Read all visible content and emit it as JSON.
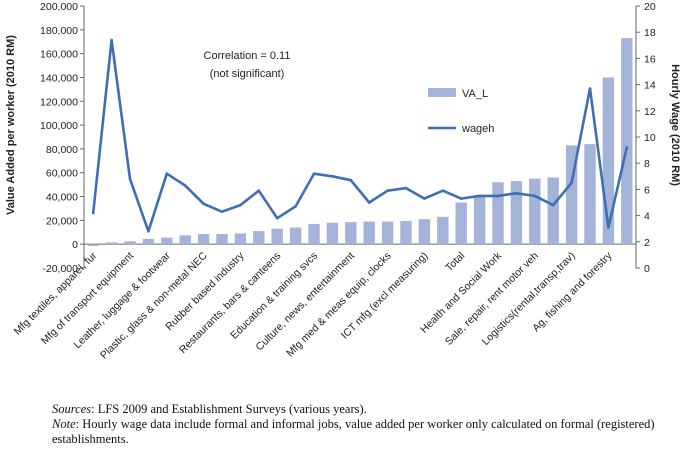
{
  "chart_data": {
    "type": "bar",
    "y_left_label": "Value Added per worker (2010 RM)",
    "y_right_label": "Hourly Wage (2010 RM)",
    "y_left_range": [
      -20000,
      200000
    ],
    "y_left_ticks": [
      "-20,000",
      "0",
      "20,000",
      "40,000",
      "60,000",
      "80,000",
      "100,000",
      "120,000",
      "140,000",
      "160,000",
      "180,000",
      "200,000"
    ],
    "y_right_range": [
      0,
      20
    ],
    "y_right_ticks": [
      "0",
      "2",
      "4",
      "6",
      "8",
      "10",
      "12",
      "14",
      "16",
      "18",
      "20"
    ],
    "categories": [
      "Mfg textiles, apparel, fur",
      "",
      "Mfg of transport equipment",
      "",
      "Leather, luggage & footwear",
      "",
      "Plastic, glass & non-metal NEC",
      "",
      "Rubber based industry",
      "",
      "Restaurants, bars & canteens",
      "",
      "Education & training svcs",
      "",
      "Culture, news, entertainment",
      "",
      "Mfg med & meas equip, clocks",
      "",
      "ICT mfg (excl measuring)",
      "",
      "Total",
      "",
      "Health and Social Work",
      "",
      "Sale, repair, rent motor veh",
      "",
      "Logistics(rental,transp,trav)",
      "",
      "Ag, fishing and forestry",
      ""
    ],
    "series": [
      {
        "name": "VA_L",
        "type": "bar",
        "axis": "left",
        "color": "#a4b3d8",
        "values": [
          -1500,
          1500,
          2500,
          4500,
          5500,
          7500,
          8500,
          8500,
          9000,
          11000,
          13000,
          14000,
          17000,
          18000,
          18500,
          19000,
          19000,
          19500,
          21000,
          23000,
          35000,
          40000,
          52000,
          53000,
          55000,
          56000,
          83000,
          84000,
          140000,
          173000
        ]
      },
      {
        "name": "wageh",
        "type": "line",
        "axis": "right",
        "color": "#3f6fb3",
        "values": [
          4.2,
          17.4,
          6.8,
          2.8,
          7.2,
          6.3,
          4.9,
          4.3,
          4.8,
          5.9,
          3.8,
          4.7,
          7.2,
          7.0,
          6.7,
          5.0,
          5.9,
          6.1,
          5.3,
          5.9,
          5.3,
          5.5,
          5.5,
          5.7,
          5.5,
          4.8,
          6.5,
          13.7,
          3.1,
          9.2
        ]
      }
    ],
    "annotation": [
      "Correlation = 0.11",
      "(not significant)"
    ],
    "legend_position": "top-right"
  },
  "notes": {
    "sources_label": "Sources",
    "sources_text": ": LFS 2009 and Establishment Surveys (various years).",
    "note_label": "Note",
    "note_text": ": Hourly wage data include formal and informal jobs, value added per worker only calculated on formal (registered) establishments."
  }
}
